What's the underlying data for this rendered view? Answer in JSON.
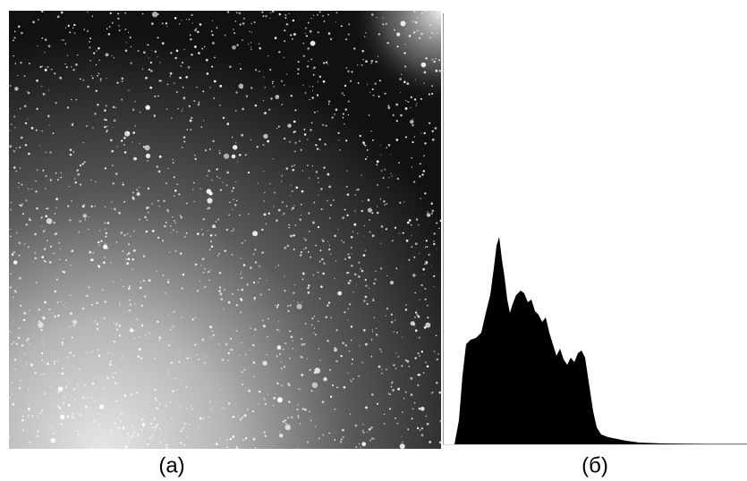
{
  "captions": {
    "left": "(а)",
    "right": "(б)"
  }
}
